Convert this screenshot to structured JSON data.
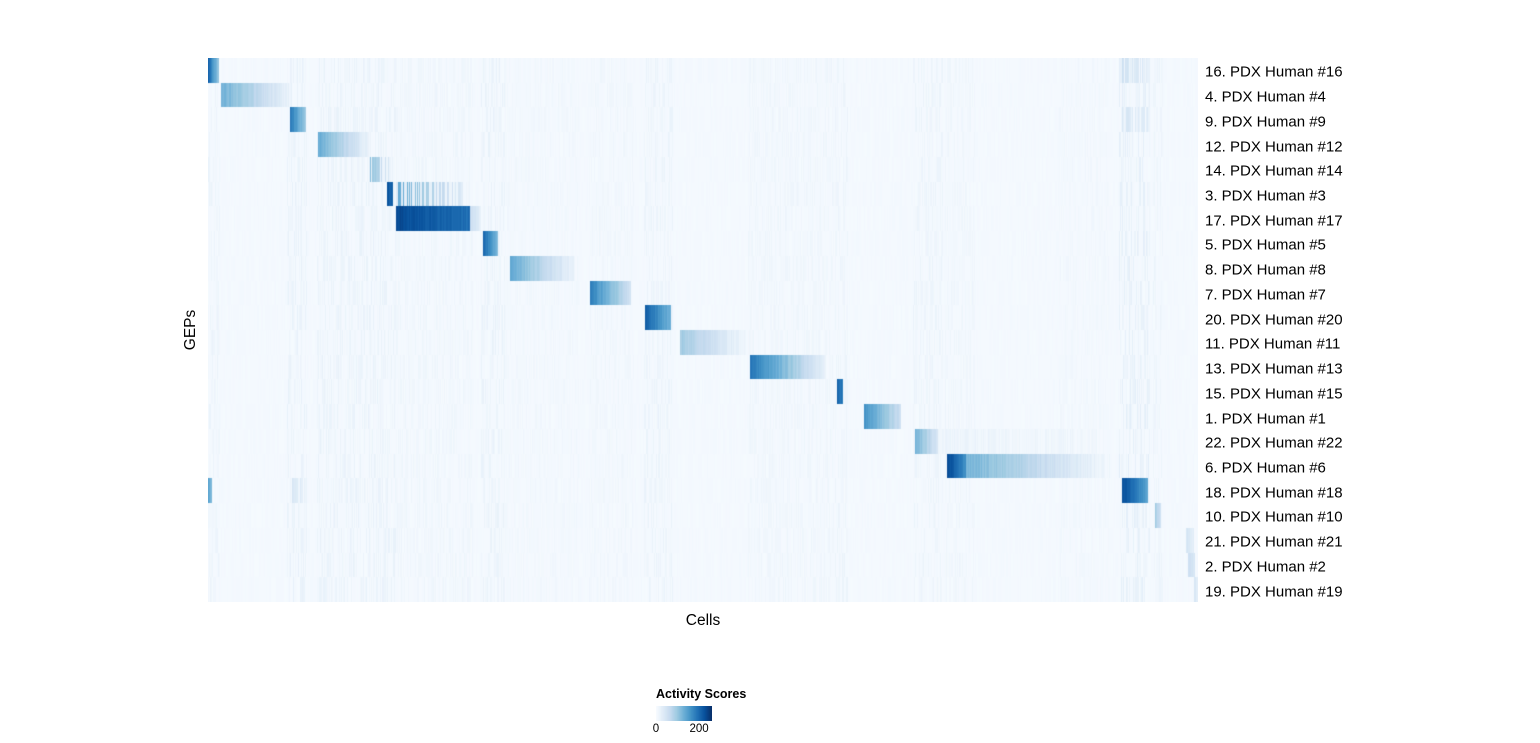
{
  "chart_data": {
    "type": "heatmap",
    "title": "",
    "xlabel": "Cells",
    "ylabel": "GEPs",
    "background_value": 2,
    "rows": [
      {
        "label": "16. PDX Human #16",
        "segments": [
          [
            0,
            0.011,
            210,
            100,
            "solid"
          ],
          [
            0.922,
            0.949,
            55,
            28,
            "striped"
          ]
        ]
      },
      {
        "label": "4. PDX Human #4",
        "segments": [
          [
            0.013,
            0.085,
            130,
            12,
            "solid"
          ]
        ]
      },
      {
        "label": "9. PDX Human #9",
        "segments": [
          [
            0.083,
            0.099,
            190,
            90,
            "solid"
          ],
          [
            0.922,
            0.949,
            48,
            24,
            "striped"
          ]
        ]
      },
      {
        "label": "12. PDX Human #12",
        "segments": [
          [
            0.111,
            0.163,
            135,
            15,
            "solid"
          ]
        ]
      },
      {
        "label": "14. PDX Human #14",
        "segments": [
          [
            0.163,
            0.186,
            110,
            35,
            "striped"
          ]
        ]
      },
      {
        "label": "3. PDX Human #3",
        "segments": [
          [
            0.181,
            0.187,
            225,
            200,
            "solid"
          ],
          [
            0.19,
            0.258,
            140,
            30,
            "striped"
          ]
        ]
      },
      {
        "label": "17. PDX Human #17",
        "segments": [
          [
            0.19,
            0.265,
            235,
            195,
            "solid"
          ],
          [
            0.265,
            0.276,
            60,
            18,
            "solid"
          ]
        ]
      },
      {
        "label": "5. PDX Human #5",
        "segments": [
          [
            0.278,
            0.293,
            210,
            110,
            "solid"
          ]
        ]
      },
      {
        "label": "8. PDX Human #8",
        "segments": [
          [
            0.305,
            0.371,
            135,
            12,
            "solid"
          ]
        ]
      },
      {
        "label": "7. PDX Human #7",
        "segments": [
          [
            0.386,
            0.427,
            180,
            50,
            "solid"
          ]
        ]
      },
      {
        "label": "20. PDX Human #20",
        "segments": [
          [
            0.441,
            0.468,
            215,
            120,
            "solid"
          ]
        ]
      },
      {
        "label": "11. PDX Human #11",
        "segments": [
          [
            0.477,
            0.543,
            95,
            8,
            "solid"
          ]
        ]
      },
      {
        "label": "13. PDX Human #13",
        "segments": [
          [
            0.547,
            0.624,
            190,
            20,
            "solid"
          ]
        ]
      },
      {
        "label": "15. PDX Human #15",
        "segments": [
          [
            0.635,
            0.641,
            215,
            180,
            "solid"
          ]
        ]
      },
      {
        "label": "1. PDX Human #1",
        "segments": [
          [
            0.663,
            0.7,
            160,
            55,
            "solid"
          ]
        ]
      },
      {
        "label": "22. PDX Human #22",
        "segments": [
          [
            0.714,
            0.737,
            130,
            40,
            "solid"
          ],
          [
            0.737,
            0.9,
            14,
            6,
            "solid"
          ]
        ]
      },
      {
        "label": "6. PDX Human #6",
        "segments": [
          [
            0.746,
            0.766,
            240,
            160,
            "solid"
          ],
          [
            0.766,
            0.912,
            125,
            5,
            "solid"
          ]
        ]
      },
      {
        "label": "18. PDX Human #18",
        "segments": [
          [
            0,
            0.004,
            135,
            120,
            "solid"
          ],
          [
            0.083,
            0.096,
            45,
            24,
            "striped"
          ],
          [
            0.923,
            0.95,
            235,
            140,
            "solid"
          ]
        ]
      },
      {
        "label": "10. PDX Human #10",
        "segments": [
          [
            0.957,
            0.963,
            90,
            50,
            "solid"
          ]
        ]
      },
      {
        "label": "21. PDX Human #21",
        "segments": [
          [
            0.988,
            0.996,
            45,
            25,
            "solid"
          ]
        ]
      },
      {
        "label": "2. PDX Human #2",
        "segments": [
          [
            0.99,
            0.997,
            60,
            35,
            "solid"
          ]
        ]
      },
      {
        "label": "19. PDX Human #19",
        "segments": [
          [
            0.996,
            1.001,
            38,
            25,
            "solid"
          ]
        ]
      }
    ],
    "bands": [
      [
        0.0,
        0.012,
        0.35
      ],
      [
        0.08,
        0.1,
        0.5
      ],
      [
        0.11,
        0.19,
        0.45
      ],
      [
        0.19,
        0.268,
        0.25
      ],
      [
        0.276,
        0.3,
        0.45
      ],
      [
        0.3,
        0.375,
        0.15
      ],
      [
        0.385,
        0.43,
        0.2
      ],
      [
        0.44,
        0.47,
        0.4
      ],
      [
        0.545,
        0.632,
        0.25
      ],
      [
        0.633,
        0.646,
        0.35
      ],
      [
        0.712,
        0.742,
        0.35
      ],
      [
        0.744,
        0.775,
        0.25
      ],
      [
        0.86,
        0.91,
        0.15
      ],
      [
        0.92,
        0.952,
        0.65
      ],
      [
        0.955,
        0.965,
        0.3
      ]
    ],
    "colorbar": {
      "title": "Activity Scores",
      "scale_max": 260,
      "ticks": [
        {
          "value": 0,
          "label": "0"
        },
        {
          "value": 200,
          "label": "200"
        }
      ],
      "gradient_stops": [
        [
          0,
          "#f7fbff"
        ],
        [
          0.125,
          "#deebf7"
        ],
        [
          0.25,
          "#c6dbef"
        ],
        [
          0.375,
          "#9ecae1"
        ],
        [
          0.5,
          "#6baed6"
        ],
        [
          0.625,
          "#4292c6"
        ],
        [
          0.75,
          "#2171b5"
        ],
        [
          0.875,
          "#08519c"
        ],
        [
          1,
          "#08306b"
        ]
      ]
    }
  }
}
